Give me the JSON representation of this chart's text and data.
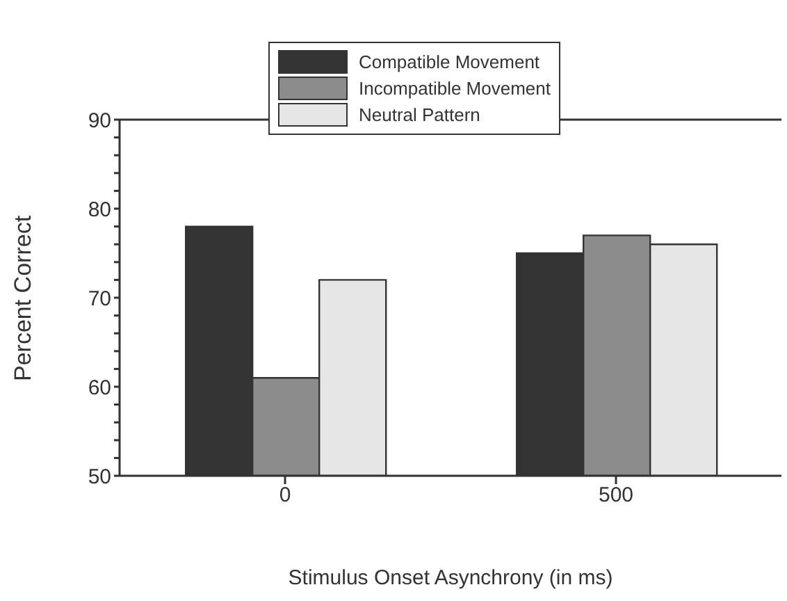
{
  "chart_data": {
    "type": "bar",
    "xlabel": "Stimulus Onset Asynchrony (in ms)",
    "ylabel": "Percent Correct",
    "categories": [
      "0",
      "500"
    ],
    "series": [
      {
        "name": "Compatible Movement",
        "color": "#333333",
        "values": [
          78,
          75
        ]
      },
      {
        "name": "Incompatible Movement",
        "color": "#8c8c8c",
        "values": [
          61,
          77
        ]
      },
      {
        "name": "Neutral Pattern",
        "color": "#e6e6e6",
        "values": [
          72,
          76
        ]
      }
    ],
    "ylim": [
      50,
      90
    ],
    "yticks": [
      50,
      {
        "value": 52,
        "label": null
      },
      {
        "value": 54,
        "label": null
      },
      {
        "value": 56,
        "label": null
      },
      {
        "value": 58,
        "label": null
      },
      60,
      {
        "value": 62,
        "label": null
      },
      {
        "value": 64,
        "label": null
      },
      {
        "value": 66,
        "label": null
      },
      {
        "value": 68,
        "label": null
      },
      70,
      {
        "value": 72,
        "label": null
      },
      {
        "value": 74,
        "label": null
      },
      {
        "value": 76,
        "label": null
      },
      {
        "value": 78,
        "label": null
      },
      80,
      {
        "value": 82,
        "label": null
      },
      {
        "value": 84,
        "label": null
      },
      {
        "value": 86,
        "label": null
      },
      {
        "value": 88,
        "label": null
      },
      90
    ],
    "grid": false,
    "legend": "top"
  }
}
